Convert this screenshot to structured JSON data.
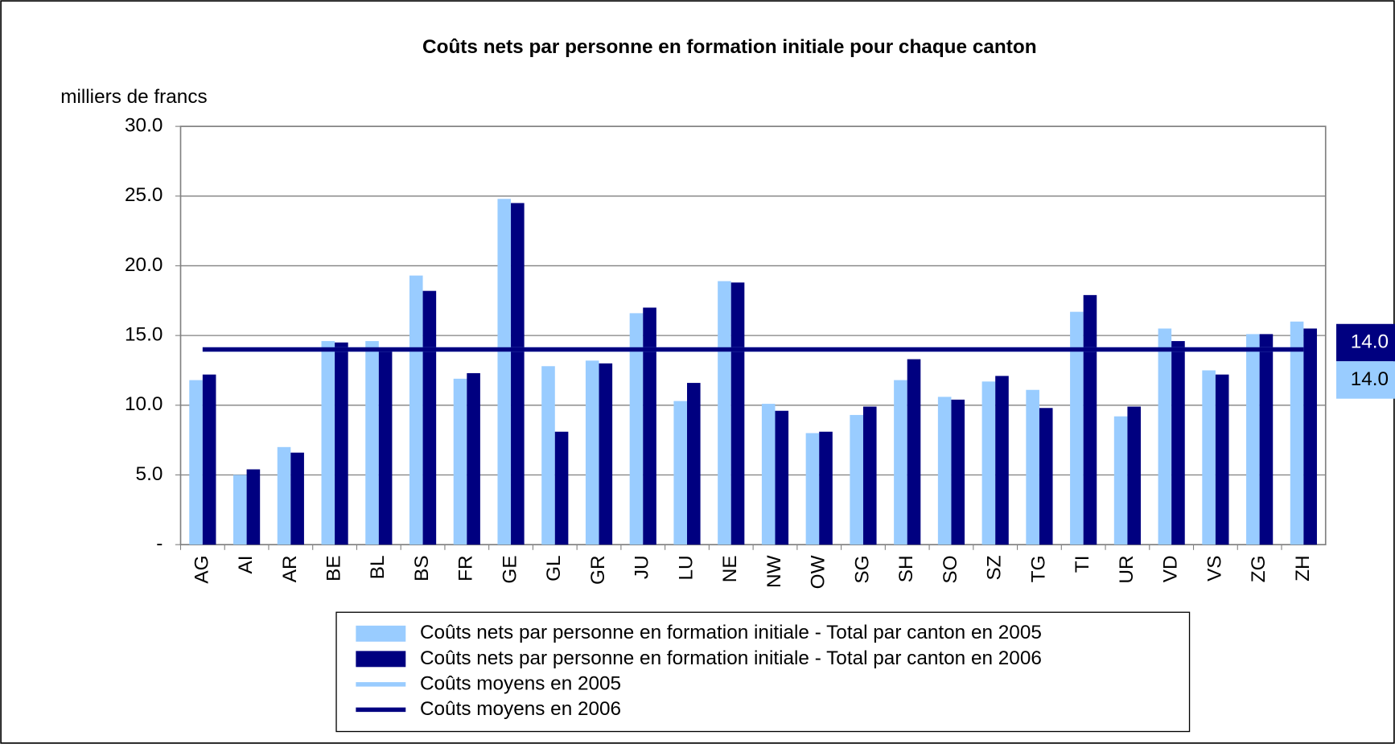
{
  "chart_data": {
    "type": "bar",
    "title": "Coûts nets par personne en formation initiale pour chaque canton",
    "y_label": "milliers de francs",
    "categories": [
      "AG",
      "AI",
      "AR",
      "BE",
      "BL",
      "BS",
      "FR",
      "GE",
      "GL",
      "GR",
      "JU",
      "LU",
      "NE",
      "NW",
      "OW",
      "SG",
      "SH",
      "SO",
      "SZ",
      "TG",
      "TI",
      "UR",
      "VD",
      "VS",
      "ZG",
      "ZH"
    ],
    "series": [
      {
        "name": "Coûts nets par personne en formation initiale - Total par canton en 2005",
        "color": "#99ccff",
        "values": [
          11.8,
          5.0,
          7.0,
          14.6,
          14.6,
          19.3,
          11.9,
          24.8,
          12.8,
          13.2,
          16.6,
          10.3,
          18.9,
          10.1,
          8.0,
          9.3,
          11.8,
          10.6,
          11.7,
          11.1,
          16.7,
          9.2,
          15.5,
          12.5,
          15.1,
          16.0
        ]
      },
      {
        "name": "Coûts nets par personne en formation initiale - Total par canton en 2006",
        "color": "#000080",
        "values": [
          12.2,
          5.4,
          6.6,
          14.5,
          14.0,
          18.2,
          12.3,
          24.5,
          8.1,
          13.0,
          17.0,
          11.6,
          18.8,
          9.6,
          8.1,
          9.9,
          13.3,
          10.4,
          12.1,
          9.8,
          17.9,
          9.9,
          14.6,
          12.2,
          15.1,
          15.5
        ]
      }
    ],
    "lines": [
      {
        "name": "Coûts moyens en 2005",
        "color": "#99ccff",
        "value": 14.0,
        "value_label": "14.0"
      },
      {
        "name": "Coûts moyens en 2006",
        "color": "#000080",
        "value": 14.0,
        "value_label": "14.0"
      }
    ],
    "ylim": [
      0,
      30
    ],
    "yticks": [
      {
        "value": 0,
        "label": "-"
      },
      {
        "value": 5,
        "label": "5.0"
      },
      {
        "value": 10,
        "label": "10.0"
      },
      {
        "value": 15,
        "label": "15.0"
      },
      {
        "value": 20,
        "label": "20.0"
      },
      {
        "value": 25,
        "label": "25.0"
      },
      {
        "value": 30,
        "label": "30.0"
      }
    ],
    "grid": true
  }
}
